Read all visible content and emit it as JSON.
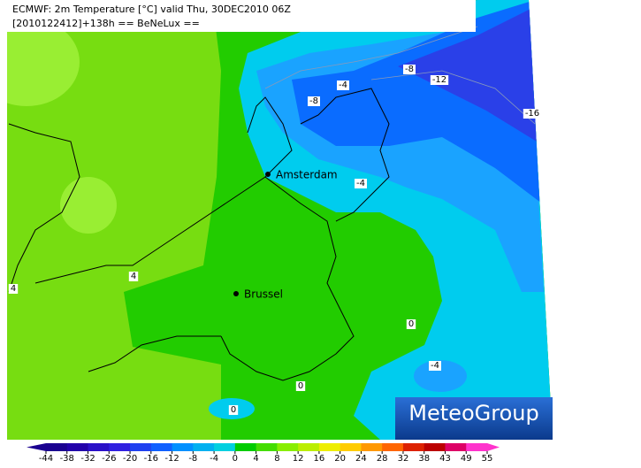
{
  "header": {
    "line1": "ECMWF: 2m Temperature [°C] valid Thu, 30DEC2010 06Z",
    "line2": "[2010122412]+138h == BeNeLux =="
  },
  "cities": [
    "Amsterdam",
    "Brussel"
  ],
  "contour_labels": [
    "-8",
    "-4",
    "-12",
    "-16",
    "-8",
    "-4",
    "4",
    "4",
    "0",
    "-4",
    "0",
    "0"
  ],
  "logo": "MeteoGroup",
  "colorbar": {
    "ticks": [
      -44,
      -38,
      -32,
      -26,
      -20,
      -16,
      -12,
      -8,
      -4,
      0,
      4,
      8,
      12,
      16,
      20,
      24,
      28,
      32,
      38,
      43,
      49,
      55
    ],
    "colors": [
      "#1a0090",
      "#2200aa",
      "#2a10c8",
      "#3020e0",
      "#2040f0",
      "#1060ff",
      "#0090ff",
      "#00b0f0",
      "#00d0e0",
      "#00cc00",
      "#44dd00",
      "#88ee00",
      "#bbee00",
      "#eeee00",
      "#ffcc00",
      "#ff9900",
      "#ff6600",
      "#dd2200",
      "#bb0000",
      "#dd0066",
      "#ff33cc"
    ]
  }
}
